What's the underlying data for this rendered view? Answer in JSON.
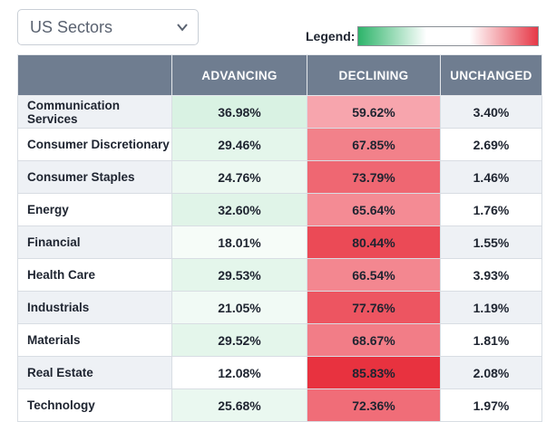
{
  "dropdown": {
    "selected": "US Sectors"
  },
  "legend": {
    "label": "Legend:"
  },
  "table": {
    "headers": {
      "sector": "",
      "advancing": "ADVANCING",
      "declining": "DECLINING",
      "unchanged": "UNCHANGED"
    },
    "rows": [
      {
        "sector": "Communication Services",
        "advancing": "36.98%",
        "declining": "59.62%",
        "unchanged": "3.40%"
      },
      {
        "sector": "Consumer Discretionary",
        "advancing": "29.46%",
        "declining": "67.85%",
        "unchanged": "2.69%"
      },
      {
        "sector": "Consumer Staples",
        "advancing": "24.76%",
        "declining": "73.79%",
        "unchanged": "1.46%"
      },
      {
        "sector": "Energy",
        "advancing": "32.60%",
        "declining": "65.64%",
        "unchanged": "1.76%"
      },
      {
        "sector": "Financial",
        "advancing": "18.01%",
        "declining": "80.44%",
        "unchanged": "1.55%"
      },
      {
        "sector": "Health Care",
        "advancing": "29.53%",
        "declining": "66.54%",
        "unchanged": "3.93%"
      },
      {
        "sector": "Industrials",
        "advancing": "21.05%",
        "declining": "77.76%",
        "unchanged": "1.19%"
      },
      {
        "sector": "Materials",
        "advancing": "29.52%",
        "declining": "68.67%",
        "unchanged": "1.81%"
      },
      {
        "sector": "Real Estate",
        "advancing": "12.08%",
        "declining": "85.83%",
        "unchanged": "2.08%"
      },
      {
        "sector": "Technology",
        "advancing": "25.68%",
        "declining": "72.36%",
        "unchanged": "1.97%"
      }
    ]
  },
  "colors": {
    "header_bg": "#6f7d90",
    "advancing_scale": [
      "#ffffff",
      "#d9f2e3"
    ],
    "declining_scale": [
      "#f7a5ad",
      "#e8323f"
    ],
    "stripe_bg": "#eef1f5"
  }
}
